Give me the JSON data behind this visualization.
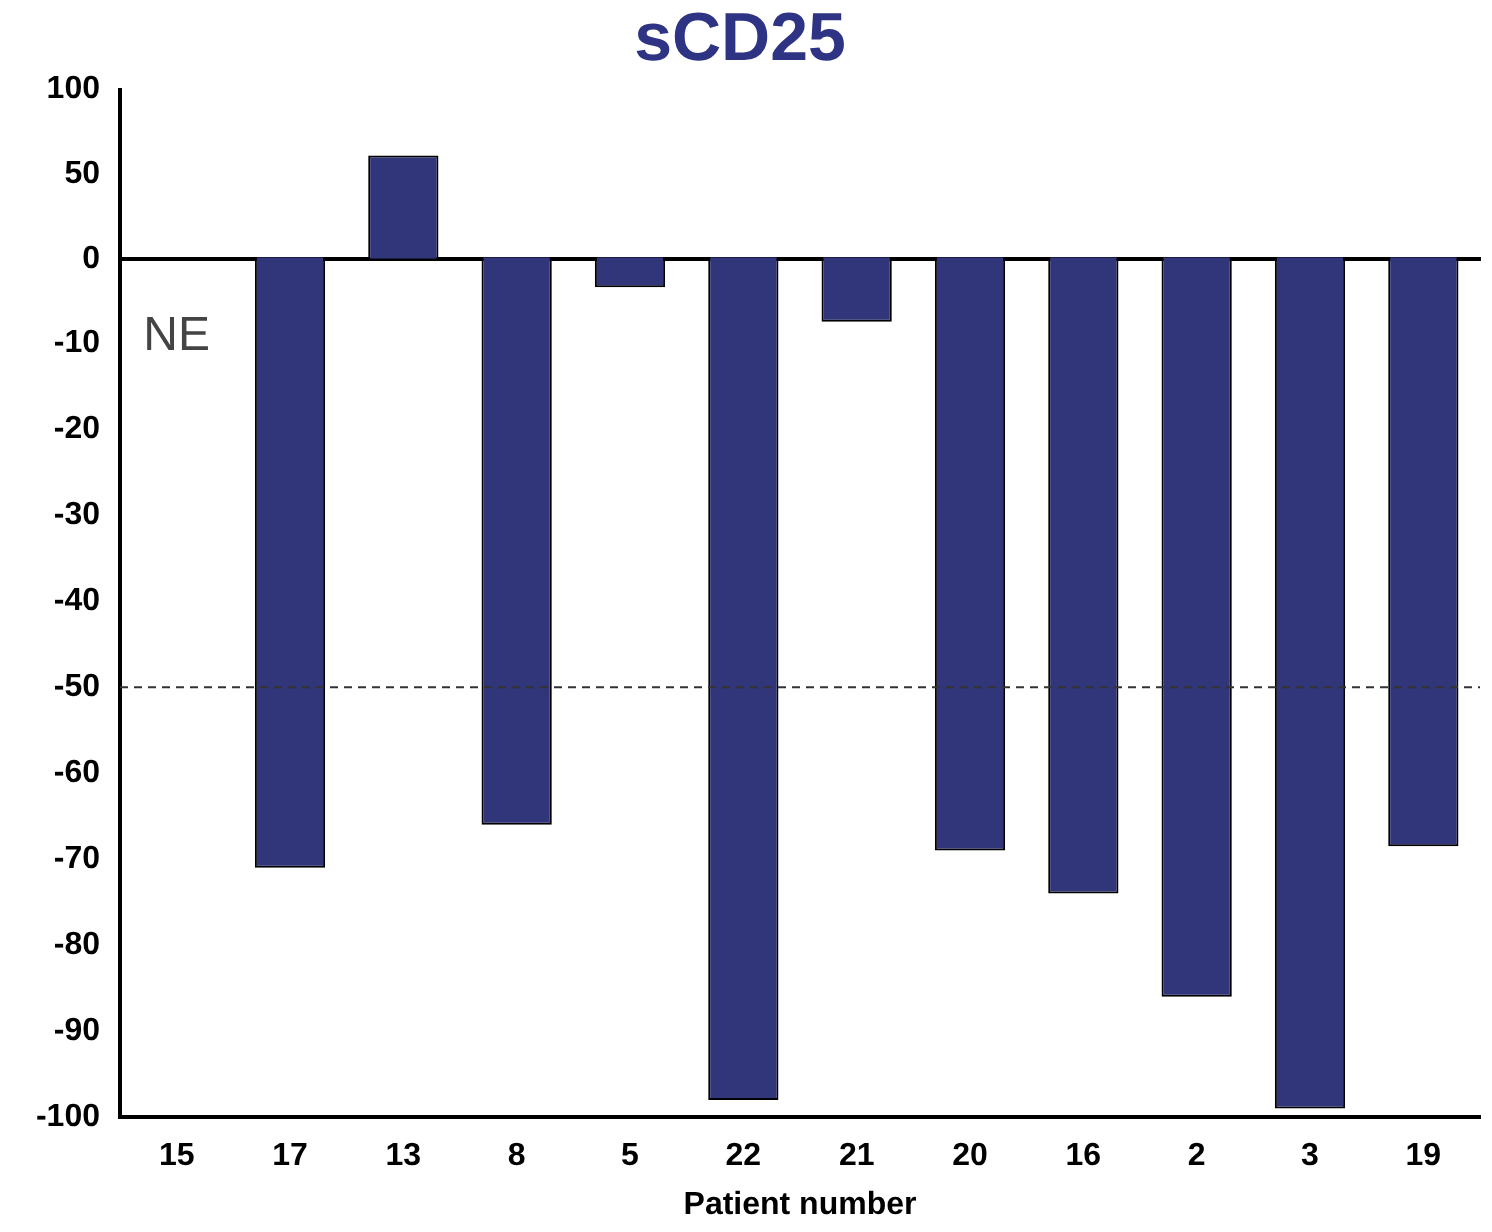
{
  "chart_data": [
    {
      "type": "bar",
      "title": "sCD25",
      "categories": [
        "15",
        "17",
        "13",
        "8",
        "5",
        "22",
        "21",
        "20",
        "16",
        "2",
        "3",
        "19"
      ],
      "values": [
        null,
        null,
        61,
        null,
        null,
        null,
        null,
        null,
        null,
        null,
        null,
        null
      ],
      "color": "#313579",
      "ylim": [
        0,
        100
      ],
      "yticks": [
        0,
        50,
        100
      ],
      "tick_labels": "y",
      "grid": false,
      "legend": false
    },
    {
      "type": "bar",
      "xlabel": "Patient number",
      "categories": [
        "15",
        "17",
        "13",
        "8",
        "5",
        "22",
        "21",
        "20",
        "16",
        "2",
        "3",
        "19"
      ],
      "values": [
        null,
        -71,
        null,
        -66,
        -3.5,
        -98,
        -7.5,
        -69,
        -74,
        -86,
        -99,
        -68.5
      ],
      "color": "#313579",
      "ylim": [
        -100,
        0
      ],
      "yticks": [
        -100,
        -90,
        -80,
        -70,
        -60,
        -50,
        -40,
        -30,
        -20,
        -10
      ],
      "ref_lines": [
        {
          "axis": "y",
          "value": -50,
          "line_style": "dashed",
          "color": "#333333"
        }
      ],
      "annotations": [
        "NE"
      ],
      "grid": false,
      "legend": false
    }
  ]
}
